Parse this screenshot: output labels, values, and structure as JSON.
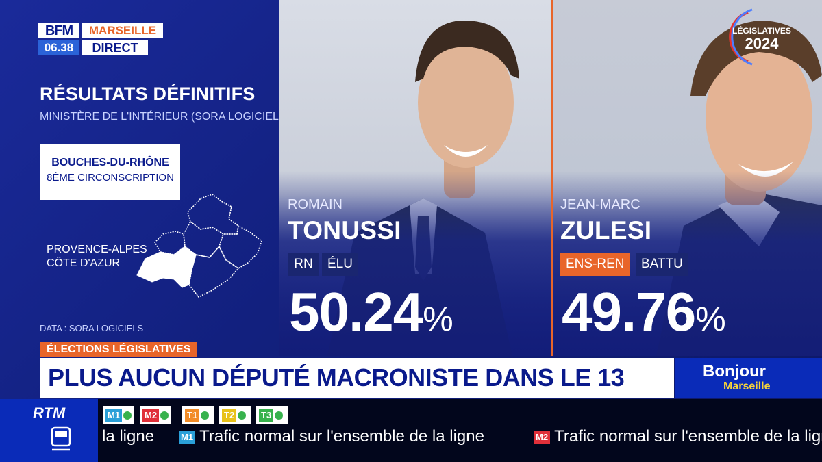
{
  "channel": {
    "brand": "BFM",
    "city": "MARSEILLE",
    "time": "06.38",
    "live": "DIRECT"
  },
  "results": {
    "title": "RÉSULTATS DÉFINITIFS",
    "source": "MINISTÈRE DE L'INTÉRIEUR (SORA LOGICIELS)",
    "department": "BOUCHES-DU-RHÔNE",
    "constituency": "8ÈME CIRCONSCRIPTION",
    "region_line1": "PROVENCE-ALPES",
    "region_line2": "CÔTE D'AZUR",
    "data_credit": "DATA : SORA LOGICIELS"
  },
  "badge": {
    "line1": "LÉGISLATIVES",
    "line2": "2024"
  },
  "candidates": [
    {
      "first_name": "ROMAIN",
      "last_name": "TONUSSI",
      "party": "RN",
      "party_color": "#1a2670",
      "status": "ÉLU",
      "percent": "50.24",
      "percent_sign": "%"
    },
    {
      "first_name": "JEAN-MARC",
      "last_name": "ZULESI",
      "party": "ENS-REN",
      "party_color": "#e8652a",
      "status": "BATTU",
      "percent": "49.76",
      "percent_sign": "%"
    }
  ],
  "banner": {
    "category": "ÉLECTIONS LÉGISLATIVES",
    "headline": "PLUS AUCUN DÉPUTÉ MACRONISTE DANS LE 13"
  },
  "show": {
    "title": "Bonjour",
    "subtitle": "Marseille"
  },
  "transport": {
    "logo": "RTM",
    "lines": [
      {
        "code": "M1",
        "color": "#2a9fd8"
      },
      {
        "code": "M2",
        "color": "#e0303a"
      },
      {
        "code": "T1",
        "color": "#f28c28"
      },
      {
        "code": "T2",
        "color": "#e8c21a"
      },
      {
        "code": "T3",
        "color": "#37b24d"
      }
    ],
    "ticker_fragment": "la ligne",
    "ticker_items": [
      {
        "tag": "M1",
        "tag_color": "#2a9fd8",
        "text": "Trafic normal sur l'ensemble de la ligne"
      },
      {
        "tag": "M2",
        "tag_color": "#e0303a",
        "text": "Trafic normal sur l'ensemble de la ligne"
      }
    ]
  },
  "colors": {
    "accent": "#e8652a",
    "navy": "#0a1a8c",
    "background": "#12207e"
  }
}
